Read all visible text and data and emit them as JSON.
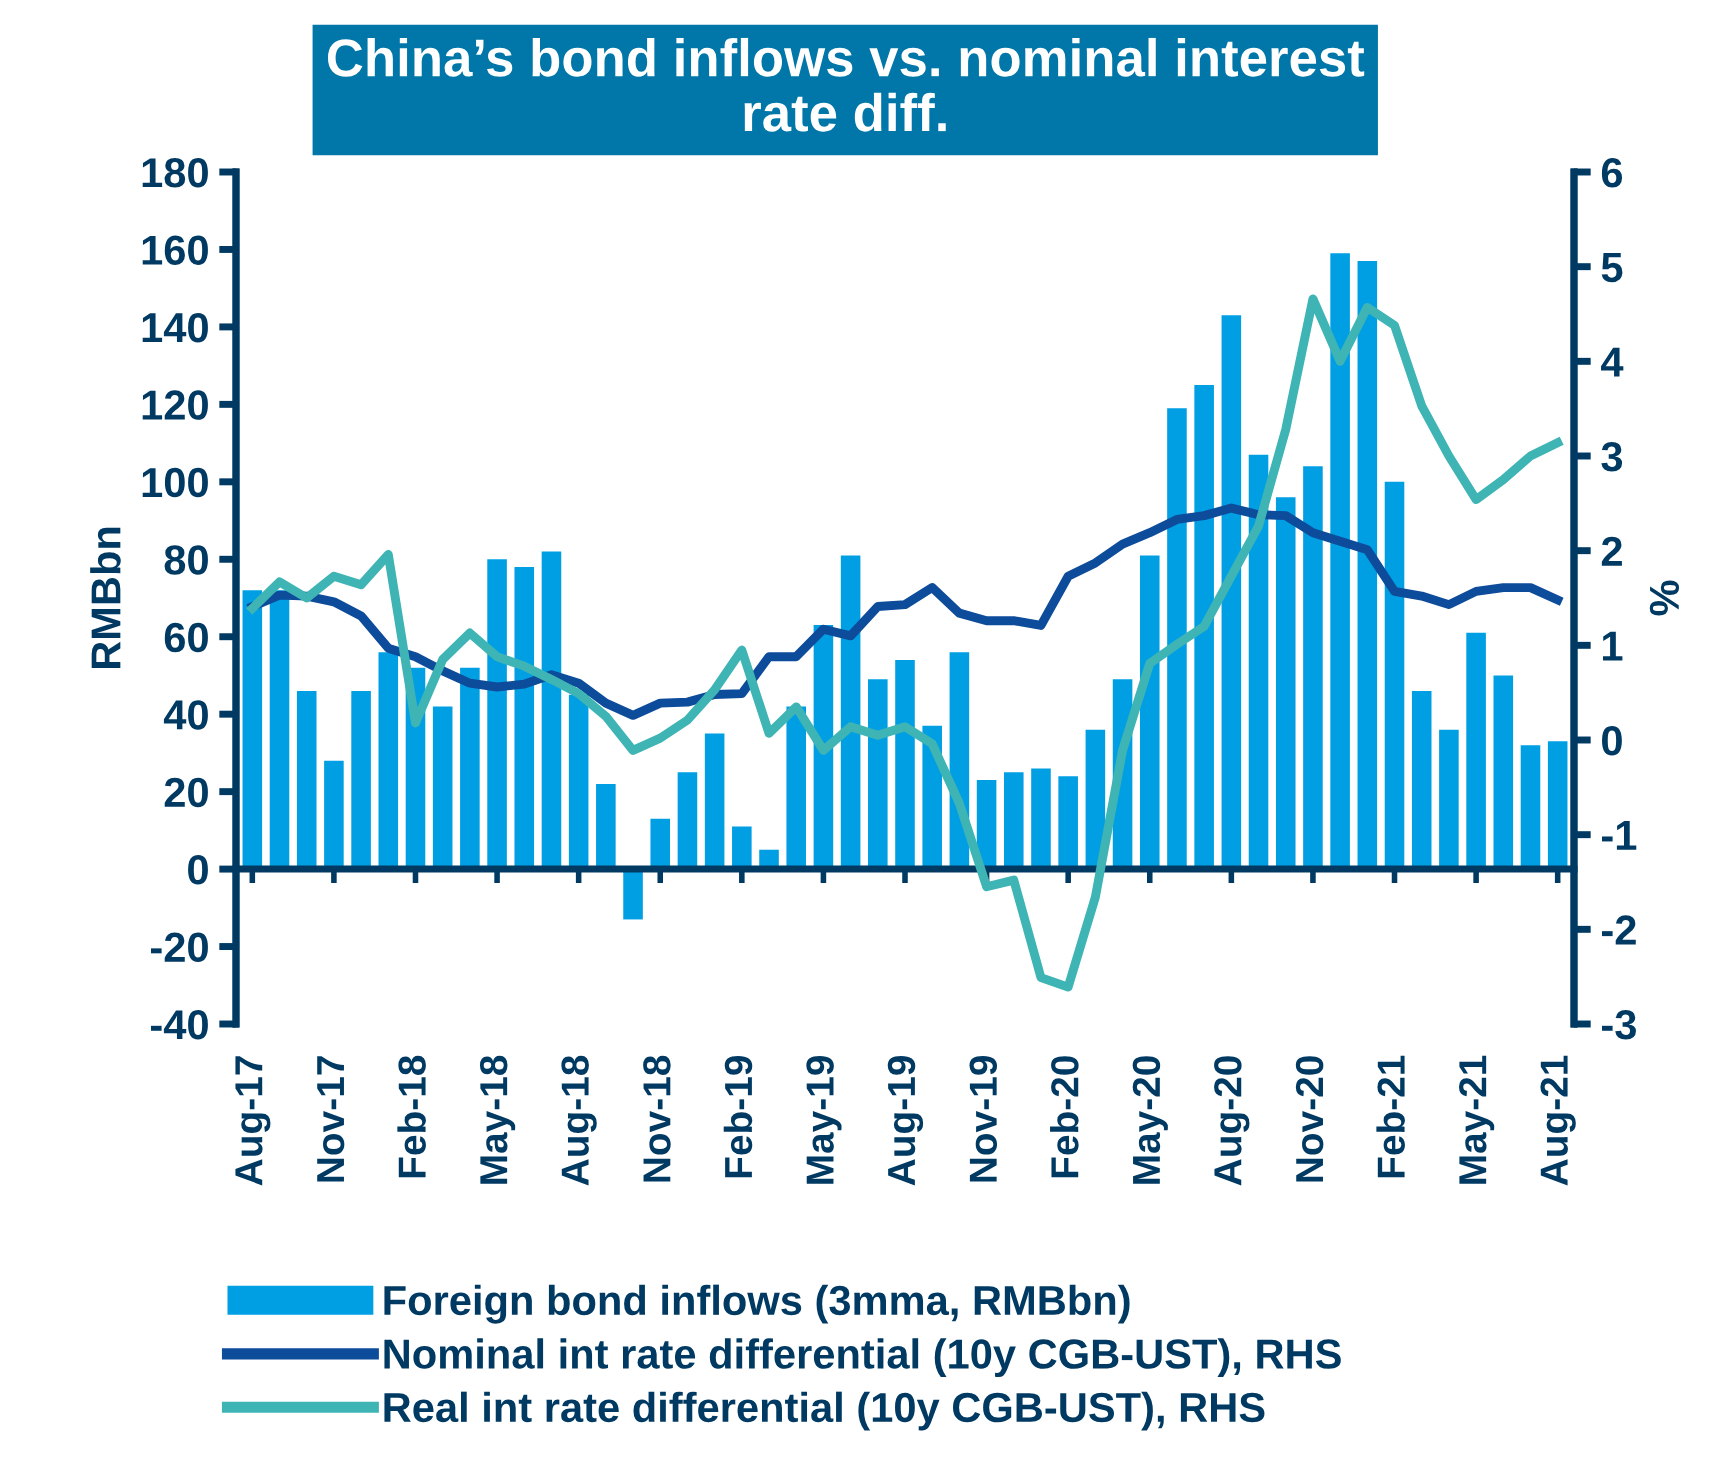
{
  "chart_data": {
    "type": "bar",
    "title": "China’s bond inflows vs. nominal interest\nrate diff.",
    "ylabel": "RMBbn",
    "y2label": "%",
    "categories": [
      "Aug-17",
      null,
      null,
      "Nov-17",
      null,
      null,
      "Feb-18",
      null,
      null,
      "May-18",
      null,
      null,
      "Aug-18",
      null,
      null,
      "Nov-18",
      null,
      null,
      "Feb-19",
      null,
      null,
      "May-19",
      null,
      null,
      "Aug-19",
      null,
      null,
      "Nov-19",
      null,
      null,
      "Feb-20",
      null,
      null,
      "May-20",
      null,
      null,
      "Aug-20",
      null,
      null,
      "Nov-20",
      null,
      null,
      "Feb-21",
      null,
      null,
      "May-21",
      null,
      null,
      "Aug-21"
    ],
    "series": [
      {
        "name": "Foreign bond inflows (3mma, RMBbn)",
        "color": "#009fe3",
        "values": [
          72,
          72,
          46,
          28,
          46,
          56,
          52,
          42,
          52,
          80,
          78,
          82,
          45,
          22,
          -13,
          13,
          25,
          35,
          11,
          5,
          42,
          63,
          81,
          49,
          54,
          37,
          56,
          23,
          25,
          26,
          24,
          36,
          49,
          81,
          119,
          125,
          143,
          107,
          96,
          104,
          159,
          157,
          100,
          46,
          36,
          61,
          50,
          32,
          33
        ]
      },
      {
        "name": "Nominal int rate differential (10y CGB-UST), RHS",
        "type": "line",
        "axis": "y2",
        "color": "#0d4b9b",
        "values": [
          1.41,
          1.53,
          1.52,
          1.46,
          1.31,
          0.97,
          0.88,
          0.73,
          0.6,
          0.56,
          0.59,
          0.69,
          0.6,
          0.39,
          0.26,
          0.39,
          0.4,
          0.48,
          0.49,
          0.88,
          0.88,
          1.17,
          1.1,
          1.41,
          1.43,
          1.61,
          1.34,
          1.26,
          1.26,
          1.21,
          1.73,
          1.87,
          2.07,
          2.19,
          2.33,
          2.37,
          2.45,
          2.38,
          2.37,
          2.19,
          2.1,
          2.01,
          1.57,
          1.52,
          1.43,
          1.57,
          1.61,
          1.61,
          1.48
        ]
      },
      {
        "name": "Real int rate differential (10y CGB-UST), RHS",
        "type": "line",
        "axis": "y2",
        "color": "#3fb4b4",
        "values": [
          1.39,
          1.67,
          1.5,
          1.73,
          1.64,
          1.96,
          0.18,
          0.85,
          1.13,
          0.88,
          0.78,
          0.64,
          0.49,
          0.25,
          -0.11,
          0.02,
          0.21,
          0.53,
          0.95,
          0.07,
          0.35,
          -0.11,
          0.14,
          0.05,
          0.14,
          -0.04,
          -0.67,
          -1.55,
          -1.48,
          -2.51,
          -2.61,
          -1.66,
          -0.11,
          0.81,
          1.01,
          1.2,
          1.73,
          2.26,
          3.28,
          4.66,
          4.0,
          4.57,
          4.38,
          3.53,
          3.0,
          2.54,
          2.75,
          3.0,
          3.14
        ]
      }
    ],
    "ylim": [
      -40,
      180
    ],
    "yticks": [
      -40,
      -20,
      0,
      20,
      40,
      60,
      80,
      100,
      120,
      140,
      160,
      180
    ],
    "y2lim": [
      -3,
      6
    ],
    "y2ticks": [
      -3,
      -2,
      -1,
      0,
      1,
      2,
      3,
      4,
      5,
      6
    ],
    "grid": false,
    "legend": "bottom",
    "marker": "none",
    "line_style": "solid"
  }
}
